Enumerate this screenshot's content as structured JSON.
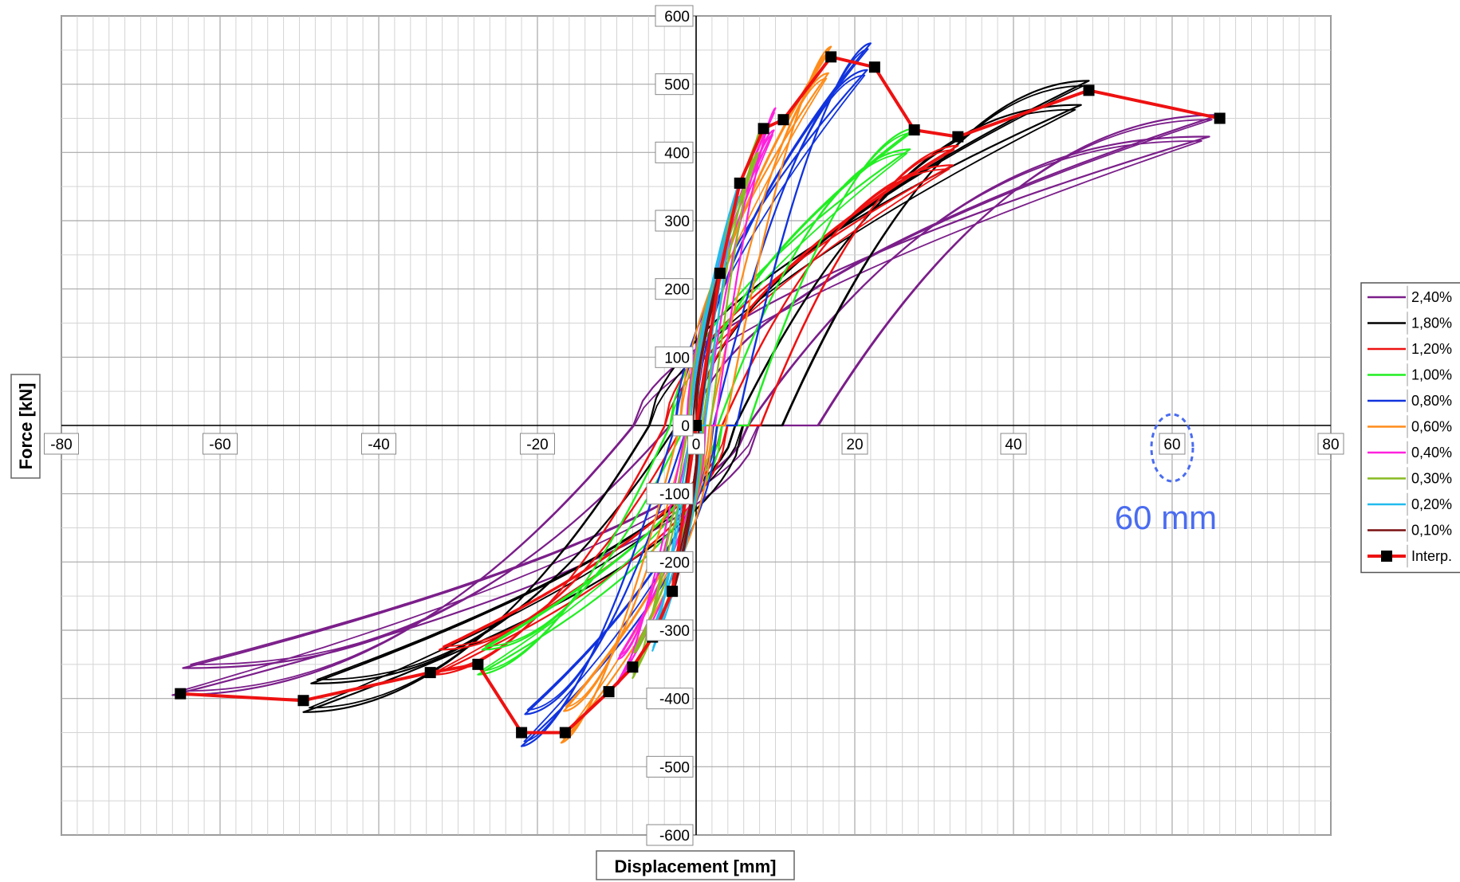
{
  "chart_data": {
    "type": "line",
    "title": "",
    "xlabel": "Displacement [mm]",
    "ylabel": "Force [kN]",
    "xlim": [
      -80,
      80
    ],
    "ylim": [
      -600,
      600
    ],
    "x_ticks": [
      -80,
      -60,
      -40,
      -20,
      0,
      20,
      40,
      60,
      80
    ],
    "y_ticks": [
      -600,
      -500,
      -400,
      -300,
      -200,
      -100,
      0,
      100,
      200,
      300,
      400,
      500,
      600
    ],
    "grid": true,
    "legend_position": "right",
    "annotation": {
      "text": "60 mm",
      "x": 60,
      "y": 0,
      "color": "#4a6cf0"
    },
    "series": [
      {
        "name": "2,40%",
        "color": "#7b1e8a",
        "amp": 66,
        "fmax": 455,
        "fmin": -395,
        "xprev": 50,
        "xprevn": -50,
        "s": 2.1
      },
      {
        "name": "1,80%",
        "color": "#000000",
        "amp": 49.5,
        "fmax": 505,
        "fmin": -420,
        "xprev": 33,
        "xprevn": -33,
        "s": 2.0
      },
      {
        "name": "1,20%",
        "color": "#ee1111",
        "amp": 33,
        "fmax": 410,
        "fmin": -365,
        "xprev": 28,
        "xprevn": -28,
        "s": 1.8
      },
      {
        "name": "1,00%",
        "color": "#22ee22",
        "amp": 27.5,
        "fmax": 435,
        "fmin": -365,
        "xprev": 22,
        "xprevn": -22,
        "s": 1.7
      },
      {
        "name": "0,80%",
        "color": "#1133dd",
        "amp": 22,
        "fmax": 560,
        "fmin": -470,
        "xprev": 16.5,
        "xprevn": -16.5,
        "s": 1.6
      },
      {
        "name": "0,60%",
        "color": "#ff8c1a",
        "amp": 17,
        "fmax": 555,
        "fmin": -465,
        "xprev": 11,
        "xprevn": -11,
        "s": 1.5
      },
      {
        "name": "0,40%",
        "color": "#ff22dd",
        "amp": 10,
        "fmax": 465,
        "fmin": -380,
        "xprev": 8,
        "xprevn": -8,
        "s": 1.4
      },
      {
        "name": "0,30%",
        "color": "#88bb22",
        "amp": 8,
        "fmax": 430,
        "fmin": -370,
        "xprev": 5.5,
        "xprevn": -5.5,
        "s": 1.3
      },
      {
        "name": "0,20%",
        "color": "#22bbee",
        "amp": 5.5,
        "fmax": 360,
        "fmin": -330,
        "xprev": 3,
        "xprevn": -3,
        "s": 1.2
      },
      {
        "name": "0,10%",
        "color": "#7a1010",
        "amp": 3,
        "fmax": 230,
        "fmin": -250,
        "xprev": 0,
        "xprevn": 0,
        "s": 1.0
      }
    ],
    "envelope": {
      "name": "Interp.",
      "color": "#ee1111",
      "points": [
        [
          -65,
          -393
        ],
        [
          -49.5,
          -403
        ],
        [
          -33.5,
          -362
        ],
        [
          -27.5,
          -350
        ],
        [
          -22,
          -450
        ],
        [
          -16.5,
          -450
        ],
        [
          -11,
          -390
        ],
        [
          -8,
          -354
        ],
        [
          -5.5,
          -310
        ],
        [
          -3,
          -243
        ],
        [
          0,
          0
        ],
        [
          3,
          223
        ],
        [
          5.5,
          355
        ],
        [
          8.5,
          435
        ],
        [
          11,
          448
        ],
        [
          17,
          540
        ],
        [
          22.5,
          525
        ],
        [
          27.5,
          433
        ],
        [
          33,
          423
        ],
        [
          49.5,
          491
        ],
        [
          66,
          450
        ]
      ]
    }
  }
}
